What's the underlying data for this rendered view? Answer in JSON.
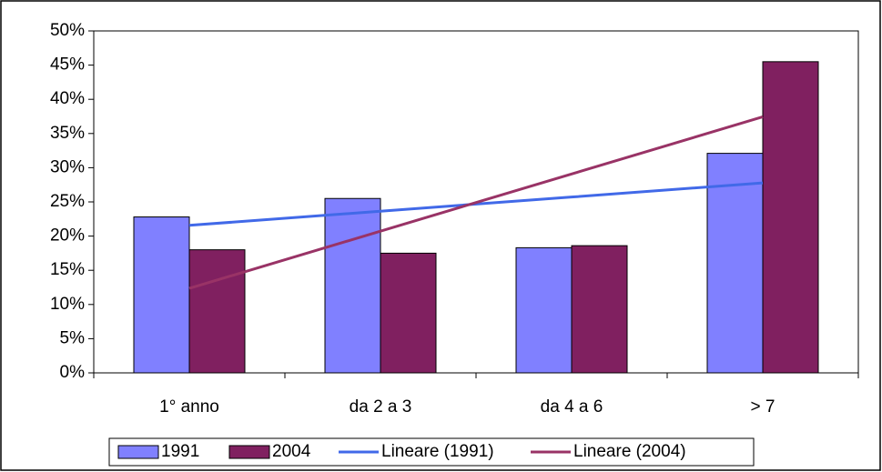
{
  "chart_data": {
    "type": "bar",
    "categories": [
      "1° anno",
      "da 2 a 3",
      "da 4 a 6",
      "> 7"
    ],
    "series": [
      {
        "name": "1991",
        "color": "#8080ff",
        "style": "bar",
        "values": [
          22.8,
          25.5,
          18.3,
          32.1
        ]
      },
      {
        "name": "2004",
        "color": "#802060",
        "style": "bar",
        "values": [
          18.0,
          17.5,
          18.6,
          45.5
        ]
      },
      {
        "name": "Lineare (1991)",
        "color": "#4169e8",
        "style": "line",
        "values": [
          21.57,
          23.64,
          25.71,
          27.78
        ]
      },
      {
        "name": "Lineare (2004)",
        "color": "#993366",
        "style": "line",
        "values": [
          12.36,
          20.72,
          29.08,
          37.44
        ]
      }
    ],
    "ylim": [
      0,
      50
    ],
    "yticks": [
      {
        "value": 0,
        "label": "0%"
      },
      {
        "value": 5,
        "label": "5%"
      },
      {
        "value": 10,
        "label": "10%"
      },
      {
        "value": 15,
        "label": "15%"
      },
      {
        "value": 20,
        "label": "20%"
      },
      {
        "value": 25,
        "label": "25%"
      },
      {
        "value": 30,
        "label": "30%"
      },
      {
        "value": 35,
        "label": "35%"
      },
      {
        "value": 40,
        "label": "40%"
      },
      {
        "value": 45,
        "label": "45%"
      },
      {
        "value": 50,
        "label": "50%"
      }
    ],
    "grid": false,
    "legend": "bottom"
  }
}
